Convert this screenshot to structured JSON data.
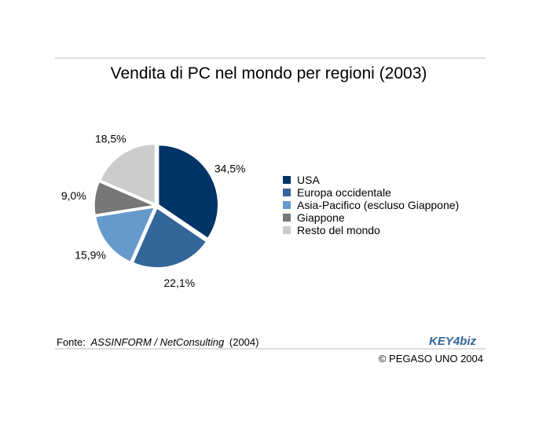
{
  "chart_data": {
    "type": "pie",
    "title": "Vendita di PC nel mondo per regioni (2003)",
    "categories": [
      "USA",
      "Europa occidentale",
      "Asia-Pacifico (escluso Giappone)",
      "Giappone",
      "Resto del mondo"
    ],
    "values": [
      34.5,
      22.1,
      15.9,
      9.0,
      18.5
    ],
    "value_labels": [
      "34,5%",
      "22,1%",
      "15,9%",
      "9,0%",
      "18,5%"
    ],
    "colors": [
      "#003366",
      "#336699",
      "#6699cc",
      "#777777",
      "#cccccc"
    ],
    "legend": "right"
  },
  "footer": {
    "source_prefix": "Fonte:",
    "source_name": "ASSINFORM / NetConsulting",
    "source_year": "(2004)",
    "logo": "KEY4biz",
    "copyright": "© PEGASO UNO 2004"
  }
}
